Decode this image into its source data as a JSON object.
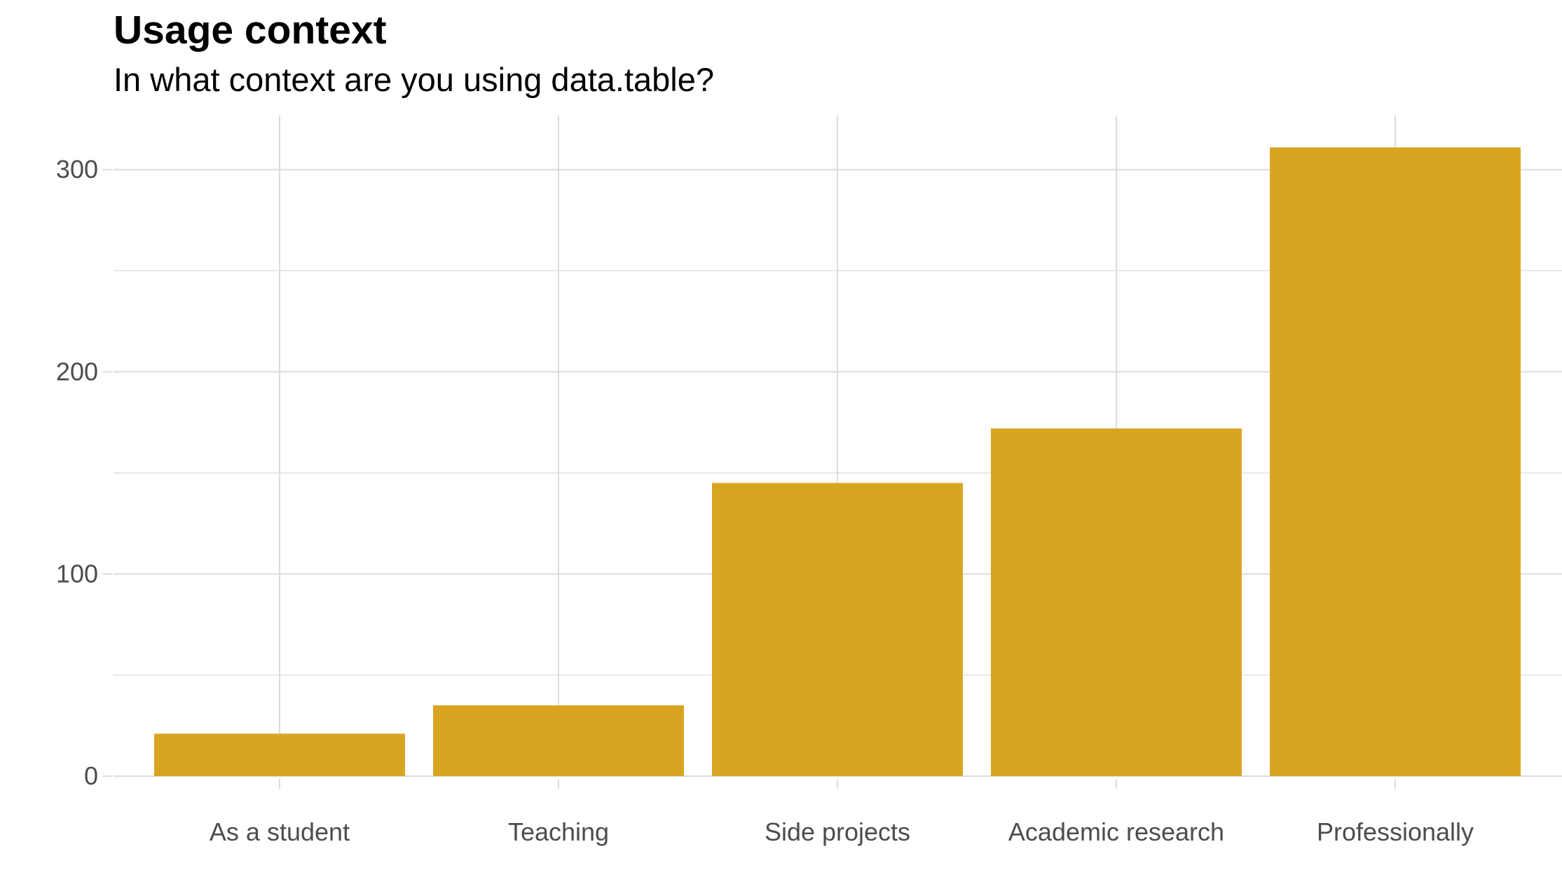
{
  "chart_data": {
    "type": "bar",
    "title": "Usage context",
    "subtitle": "In what context are you using data.table?",
    "xlabel": "",
    "ylabel": "",
    "categories": [
      "As a student",
      "Teaching",
      "Side projects",
      "Academic research",
      "Professionally"
    ],
    "values": [
      21,
      35,
      145,
      172,
      311
    ],
    "ylim": [
      0,
      327
    ],
    "yticks": [
      0,
      100,
      200,
      300
    ],
    "grid": true,
    "legend": "none",
    "colors": {
      "bar": "#D9A521",
      "grid": "#DCDCDC",
      "tick_label": "#4D4D4D",
      "title": "#000000"
    }
  }
}
